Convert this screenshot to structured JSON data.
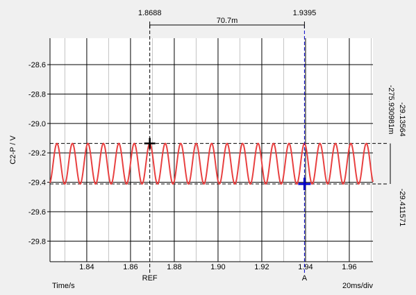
{
  "chart_data": {
    "type": "line",
    "title": "",
    "xlabel": "Time/s",
    "ylabel": "C2-P / V",
    "timebase": "20ms/div",
    "xlim": [
      1.8232,
      1.9708
    ],
    "ylim": [
      -29.94,
      -28.42
    ],
    "x_ticks": [
      1.84,
      1.86,
      1.88,
      1.9,
      1.92,
      1.94,
      1.96
    ],
    "x_tick_labels": [
      "1.84",
      "1.86",
      "1.88",
      "1.90",
      "1.92",
      "1.94",
      "1.96"
    ],
    "y_ticks": [
      -28.6,
      -28.8,
      -29.0,
      -29.2,
      -29.4,
      -29.6,
      -29.8
    ],
    "y_tick_labels": [
      "-28.6",
      "-28.8",
      "-29.0",
      "-29.2",
      "-29.4",
      "-29.6",
      "-29.8"
    ],
    "grid": true,
    "series": [
      {
        "color": "#e84040",
        "shape": "sine",
        "max": -29.13564,
        "min": -29.411571,
        "period": 0.00707,
        "peak_at": 1.8688
      }
    ],
    "cursors": [
      {
        "label": "REF",
        "x_value": "1.8688",
        "x": 1.8688,
        "y": -29.13564,
        "color": "#000000"
      },
      {
        "label": "A",
        "x_value": "1.9395",
        "x": 1.9395,
        "y": -29.411571,
        "color": "#0000c8"
      }
    ],
    "delta_x": "70.7m",
    "level_high": "-29.13564",
    "level_low": "-29.411571",
    "delta_y": "-275.930981m"
  }
}
